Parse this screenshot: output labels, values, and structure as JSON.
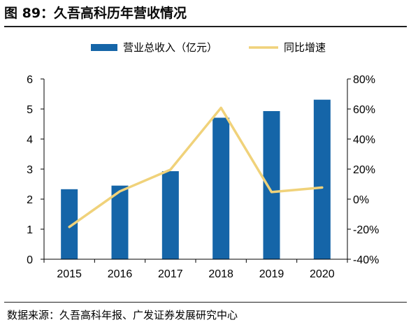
{
  "header": {
    "figure_title": "图 89：久吾高科历年营收情况"
  },
  "footer": {
    "source": "数据来源：久吾高科年报、广发证券发展研究中心"
  },
  "colors": {
    "bar": "#1565a8",
    "line": "#f0d27a",
    "axis": "#000000"
  },
  "chart_data": {
    "type": "bar",
    "title": "图 89：久吾高科历年营收情况",
    "categories": [
      "2015",
      "2016",
      "2017",
      "2018",
      "2019",
      "2020"
    ],
    "series": [
      {
        "name": "营业总收入（亿元）",
        "type": "bar",
        "axis": "left",
        "values": [
          2.33,
          2.45,
          2.93,
          4.71,
          4.93,
          5.31
        ]
      },
      {
        "name": "同比增速",
        "type": "line",
        "axis": "right",
        "unit": "%",
        "values": [
          -18.5,
          5.2,
          19.6,
          60.8,
          4.7,
          7.7
        ]
      }
    ],
    "ylim_left": [
      0,
      6
    ],
    "ylim_right": [
      -40,
      80
    ],
    "left_ticks": [
      "0",
      "1",
      "2",
      "3",
      "4",
      "5",
      "6"
    ],
    "right_ticks": [
      "-40%",
      "-20%",
      "0%",
      "20%",
      "40%",
      "60%",
      "80%"
    ],
    "legend_position": "top",
    "grid": false
  }
}
